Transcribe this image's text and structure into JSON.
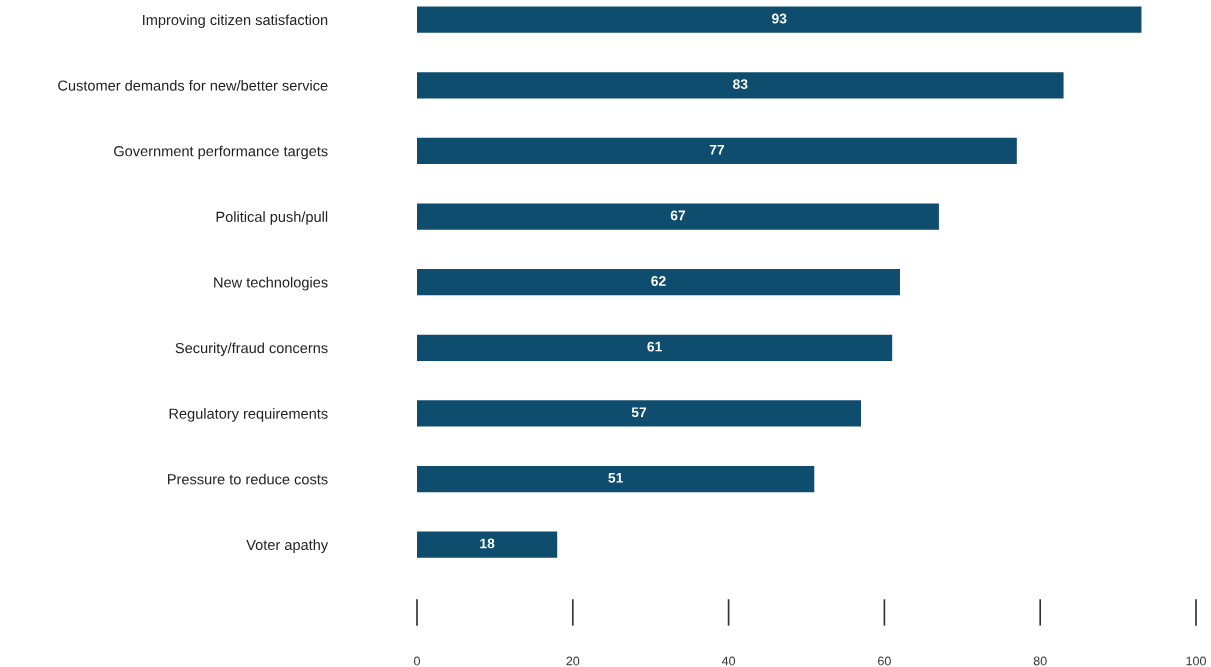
{
  "chart_data": {
    "type": "bar",
    "orientation": "horizontal",
    "categories": [
      "Improving citizen satisfaction",
      "Customer demands for new/better service",
      "Government performance targets",
      "Political push/pull",
      "New technologies",
      "Security/fraud concerns",
      "Regulatory requirements",
      "Pressure to reduce costs",
      "Voter apathy"
    ],
    "values": [
      93,
      83,
      77,
      67,
      62,
      61,
      57,
      51,
      18
    ],
    "color": "#0e4d6d",
    "xlim": [
      0,
      100
    ],
    "xticks": [
      0,
      20,
      40,
      60,
      80,
      100
    ],
    "data_labels": true,
    "grid": false,
    "legend": false
  }
}
